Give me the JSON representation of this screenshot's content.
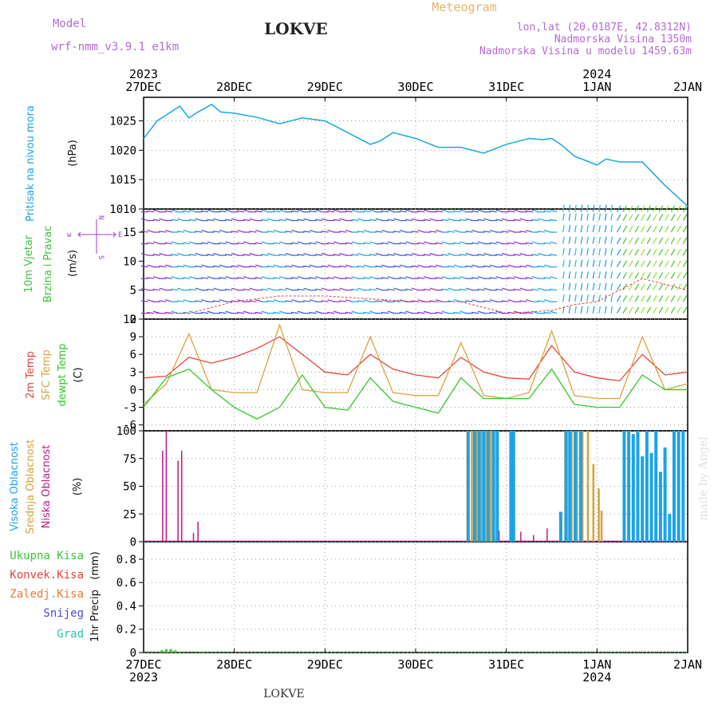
{
  "title": "LOKVE",
  "subtitle": "Meteogram",
  "model_label": "Model",
  "model_name": "wrf-nmm_v3.9.1 e1km",
  "location_lines": [
    "lon,lat (20.0187E, 42.8312N)",
    "Nadmorska Visina 1350m",
    "Nadmorska Visina u modelu 1459.63m"
  ],
  "credit": "made by Angel",
  "footer": "LOKVE",
  "colors": {
    "pressure": "#1aa7e6",
    "temp2m": "#e8453c",
    "sfc_temp": "#dba340",
    "dewpt": "#33c82b",
    "cloud_high": "#1ba3e8",
    "cloud_mid": "#d4a23c",
    "cloud_low": "#c0168a",
    "precip_total": "#3ac43a",
    "wind_title": "#3ac43a",
    "wind_dir": "#a03cd4",
    "model_purple": "#b36ad6",
    "meteogram_gold": "#e8b36a"
  },
  "time_axis": {
    "top_years": [
      "2023",
      "2024"
    ],
    "bottom_years": [
      "2023",
      "2024"
    ],
    "ticks": [
      "27DEC",
      "28DEC",
      "29DEC",
      "30DEC",
      "31DEC",
      "1JAN",
      "2JAN"
    ]
  },
  "panels": {
    "pressure": {
      "title": "Pritisak na nivou mora",
      "unit": "(hPa)",
      "yticks": [
        "1010",
        "1015",
        "1020",
        "1025"
      ]
    },
    "wind": {
      "title_lines": [
        "10m Vjetar",
        "Brzina i Pravac"
      ],
      "unit": "(m/s)",
      "yticks": [
        "0",
        "5",
        "10",
        "15"
      ],
      "dir_labels": [
        "w",
        "N",
        "E",
        "S"
      ]
    },
    "temp": {
      "labels": [
        "2m Temp",
        "SFC Temp",
        "dewpt Temp"
      ],
      "unit": "(C)",
      "yticks": [
        "-6",
        "-3",
        "0",
        "3",
        "6",
        "9",
        "12"
      ]
    },
    "cloud": {
      "labels": [
        "Visoka Oblacnost",
        "Srednja Oblacnost",
        "Niska Oblacnost"
      ],
      "unit": "(%)",
      "yticks": [
        "0",
        "25",
        "50",
        "75",
        "100"
      ]
    },
    "precip": {
      "labels": [
        "Ukupna Kisa",
        "Konvek.Kisa",
        "Zaledj.Kisa",
        "Snijeg",
        "Grad"
      ],
      "unit_lines": [
        "1hr Precip",
        "(mm)"
      ],
      "yticks": [
        "0",
        "0.2",
        "0.4",
        "0.6",
        "0.8"
      ]
    }
  },
  "chart_data": [
    {
      "type": "line",
      "panel": "pressure",
      "xlabel": "",
      "ylabel": "(hPa)",
      "ylim": [
        1010,
        1029
      ],
      "x_days": [
        0,
        0.15,
        0.3,
        0.4,
        0.5,
        0.6,
        0.75,
        0.85,
        1.0,
        1.25,
        1.5,
        1.75,
        2.0,
        2.25,
        2.5,
        2.6,
        2.75,
        3.0,
        3.25,
        3.5,
        3.75,
        4.0,
        4.25,
        4.4,
        4.5,
        4.6,
        4.75,
        5.0,
        5.1,
        5.25,
        5.5,
        5.75,
        6.0
      ],
      "values": [
        1022,
        1025,
        1026.5,
        1027.5,
        1025.5,
        1026.5,
        1027.8,
        1026.5,
        1026.3,
        1025.6,
        1024.5,
        1025.5,
        1025,
        1023,
        1021,
        1021.5,
        1023,
        1022,
        1020.5,
        1020.5,
        1019.5,
        1021,
        1022,
        1021.8,
        1022,
        1021,
        1019,
        1017.5,
        1018.5,
        1018,
        1018,
        1014,
        1010.5
      ],
      "grid": true
    },
    {
      "type": "line",
      "panel": "temperature",
      "xlabel": "",
      "ylabel": "(C)",
      "ylim": [
        -7,
        12
      ],
      "x_days": [
        0,
        0.25,
        0.5,
        0.75,
        1.0,
        1.25,
        1.5,
        1.75,
        2.0,
        2.25,
        2.5,
        2.75,
        3.0,
        3.25,
        3.5,
        3.75,
        4.0,
        4.25,
        4.5,
        4.75,
        5.0,
        5.25,
        5.5,
        5.75,
        6.0
      ],
      "series": [
        {
          "name": "2m Temp",
          "values": [
            2,
            2.3,
            5.5,
            4.5,
            5.5,
            7,
            9,
            6,
            3,
            2.5,
            6,
            3.5,
            2.5,
            2,
            5.5,
            3,
            2,
            1.8,
            7.5,
            3,
            2,
            1.5,
            6,
            2.5,
            3
          ]
        },
        {
          "name": "SFC Temp",
          "values": [
            -2.5,
            1,
            9.5,
            0,
            -0.5,
            -0.5,
            11,
            0,
            -0.5,
            -0.5,
            9,
            -0.5,
            -1,
            -1,
            8,
            -1,
            -1.5,
            -0.5,
            10,
            -1,
            -1.5,
            -1.5,
            9,
            0,
            1
          ]
        },
        {
          "name": "dewpt Temp",
          "values": [
            -3,
            2,
            3.5,
            0,
            -3,
            -5,
            -3,
            2.5,
            -3,
            -3.5,
            2,
            -2,
            -3,
            -4,
            2,
            -1.5,
            -1.5,
            -1.5,
            3.5,
            -2.5,
            -3,
            -3,
            2.5,
            0,
            0
          ]
        }
      ],
      "grid": true
    },
    {
      "type": "bar",
      "panel": "cloud",
      "xlabel": "",
      "ylabel": "(%)",
      "ylim": [
        0,
        100
      ],
      "series": [
        {
          "name": "Niska Oblacnost",
          "x_days": [
            0.21,
            0.25,
            0.38,
            0.42,
            0.55,
            0.6,
            3.92,
            4.16,
            4.3,
            4.45
          ],
          "values": [
            82,
            100,
            73,
            82,
            8,
            18,
            10,
            9,
            6,
            12
          ]
        },
        {
          "name": "Srednja Oblacnost",
          "x_days": [
            3.57,
            3.62,
            3.67,
            3.72,
            3.77,
            3.83,
            4.65,
            4.72,
            4.78,
            4.84,
            4.9,
            4.96,
            5.02,
            5.05
          ],
          "values": [
            100,
            100,
            100,
            100,
            100,
            100,
            100,
            100,
            100,
            100,
            100,
            70,
            48,
            28
          ]
        },
        {
          "name": "Visoka Oblacnost",
          "x_days": [
            3.58,
            3.65,
            3.7,
            3.75,
            3.8,
            3.86,
            3.9,
            4.05,
            4.08,
            4.6,
            4.66,
            4.7,
            4.76,
            4.82,
            5.3,
            5.35,
            5.4,
            5.45,
            5.5,
            5.55,
            5.6,
            5.65,
            5.7,
            5.75,
            5.8,
            5.85,
            5.9,
            5.95
          ],
          "values": [
            100,
            100,
            100,
            100,
            100,
            100,
            100,
            100,
            100,
            27,
            100,
            100,
            100,
            100,
            100,
            100,
            97,
            100,
            77,
            100,
            80,
            100,
            63,
            85,
            25,
            100,
            100,
            100
          ]
        }
      ],
      "grid": true
    },
    {
      "type": "bar",
      "panel": "precip",
      "xlabel": "",
      "ylabel": "1hr Precip (mm)",
      "ylim": [
        0,
        0.95
      ],
      "series": [
        {
          "name": "Ukupna Kisa",
          "x_days": [
            0.2,
            0.25,
            0.3,
            0.35,
            0.4,
            0.65
          ],
          "values": [
            0.02,
            0.03,
            0.03,
            0.02,
            0.01,
            0.01
          ]
        }
      ],
      "grid": true
    }
  ],
  "wind_data": {
    "type": "barbs",
    "xlim_days": [
      0,
      6
    ],
    "ylim": [
      0,
      19
    ],
    "speed_x_days": [
      0,
      0.5,
      1.0,
      1.5,
      2.0,
      2.5,
      3.0,
      3.5,
      4.0,
      4.5,
      4.75,
      5.0,
      5.25,
      5.5,
      5.75,
      6.0
    ],
    "speed_values": [
      1,
      1,
      3,
      4,
      4,
      3.5,
      3,
      3,
      1,
      1.5,
      2.5,
      3,
      5,
      7,
      6,
      5
    ]
  }
}
